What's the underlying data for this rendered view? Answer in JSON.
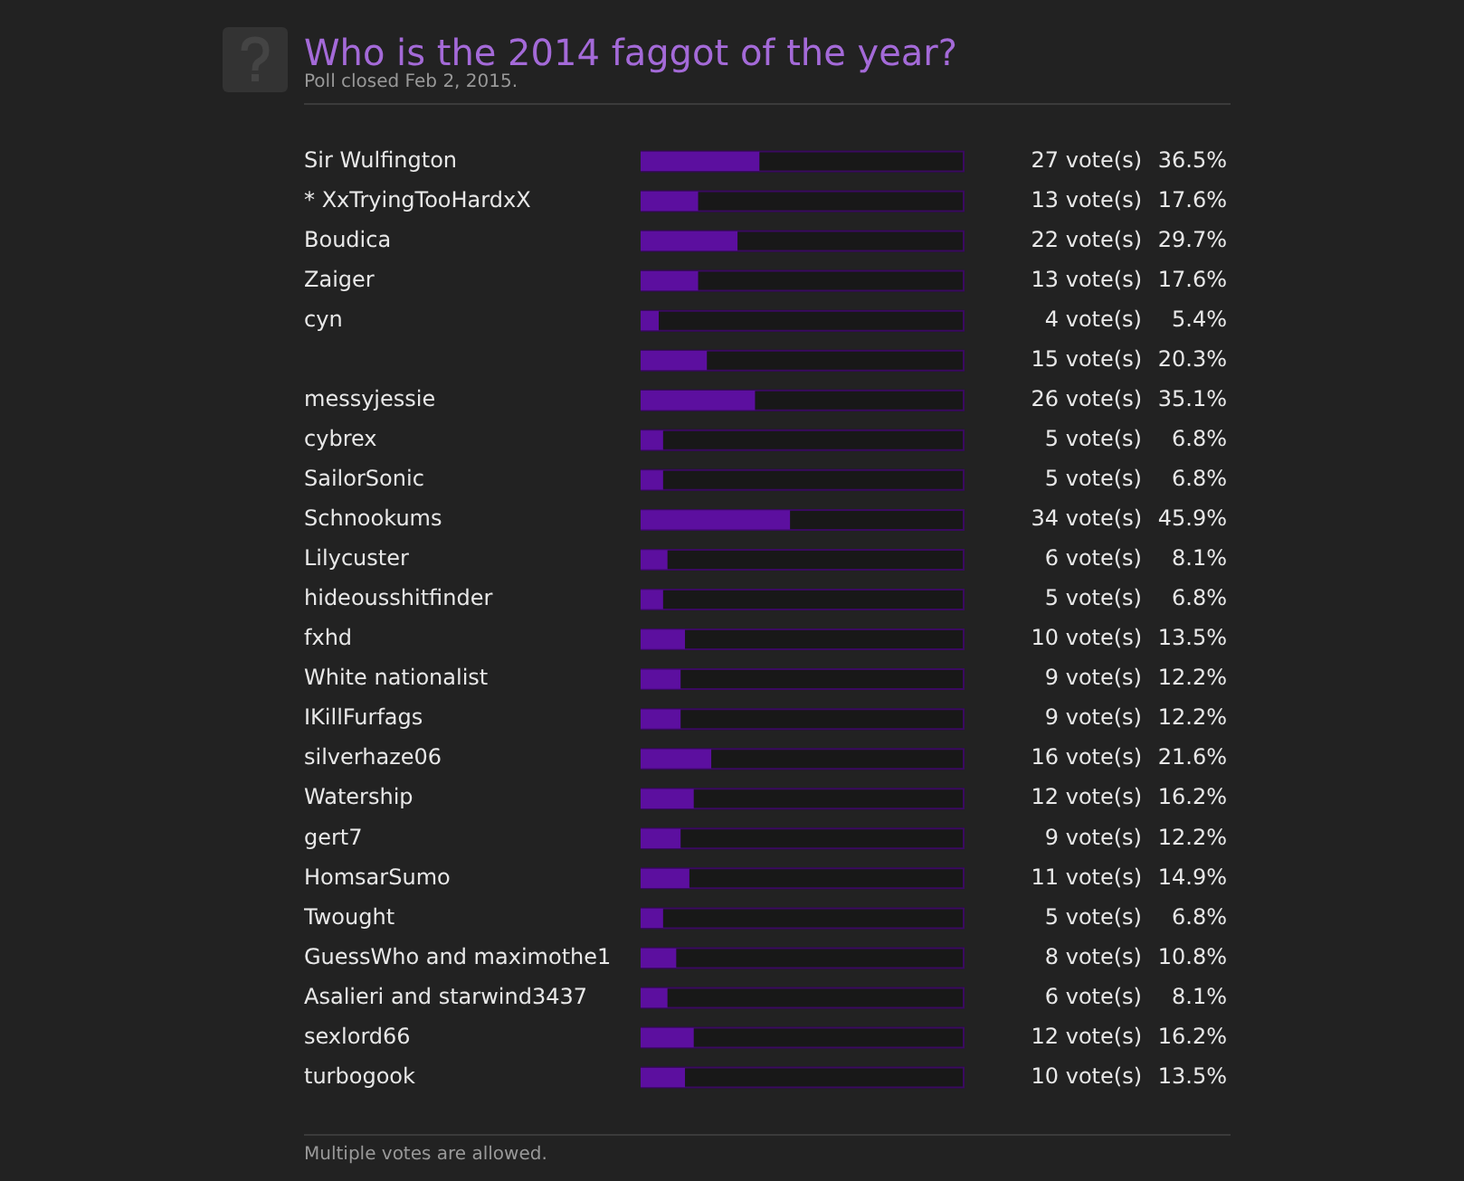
{
  "chart_data": {
    "type": "bar",
    "orientation": "horizontal",
    "title": "Who is the 2014 faggot of the year?",
    "subtitle": "Poll closed Feb 2, 2015.",
    "categories": [
      "Sir Wulfington",
      "* XxTryingTooHardxX",
      "Boudica",
      "Zaiger",
      "cyn",
      null,
      "messyjessie",
      "cybrex",
      "SailorSonic",
      "Schnookums",
      "Lilycuster",
      "hideousshitfinder",
      "fxhd",
      "White nationalist",
      "IKillFurfags",
      "silverhaze06",
      "Watership",
      "gert7",
      "HomsarSumo",
      "Twought",
      "GuessWho and maximothe1",
      "Asalieri and starwind3437",
      "sexlord66",
      "turbogook"
    ],
    "values": [
      27,
      13,
      22,
      13,
      4,
      15,
      26,
      5,
      5,
      34,
      6,
      5,
      10,
      9,
      9,
      16,
      12,
      9,
      11,
      5,
      8,
      6,
      12,
      10
    ],
    "value_labels": [
      "27 vote(s)",
      "13 vote(s)",
      "22 vote(s)",
      "13 vote(s)",
      "4 vote(s)",
      "15 vote(s)",
      "26 vote(s)",
      "5 vote(s)",
      "5 vote(s)",
      "34 vote(s)",
      "6 vote(s)",
      "5 vote(s)",
      "10 vote(s)",
      "9 vote(s)",
      "9 vote(s)",
      "16 vote(s)",
      "12 vote(s)",
      "9 vote(s)",
      "11 vote(s)",
      "5 vote(s)",
      "8 vote(s)",
      "6 vote(s)",
      "12 vote(s)",
      "10 vote(s)"
    ],
    "annotations": [
      "36.5%",
      "17.6%",
      "29.7%",
      "17.6%",
      "5.4%",
      "20.3%",
      "35.1%",
      "6.8%",
      "6.8%",
      "45.9%",
      "8.1%",
      "6.8%",
      "13.5%",
      "12.2%",
      "12.2%",
      "21.6%",
      "16.2%",
      "12.2%",
      "14.9%",
      "6.8%",
      "10.8%",
      "8.1%",
      "16.2%",
      "13.5%",
      "Multiple votes are allowed."
    ],
    "color": "#5c0f9f",
    "xlim": [
      0,
      74
    ],
    "tick_labels": "y",
    "legend": false
  }
}
